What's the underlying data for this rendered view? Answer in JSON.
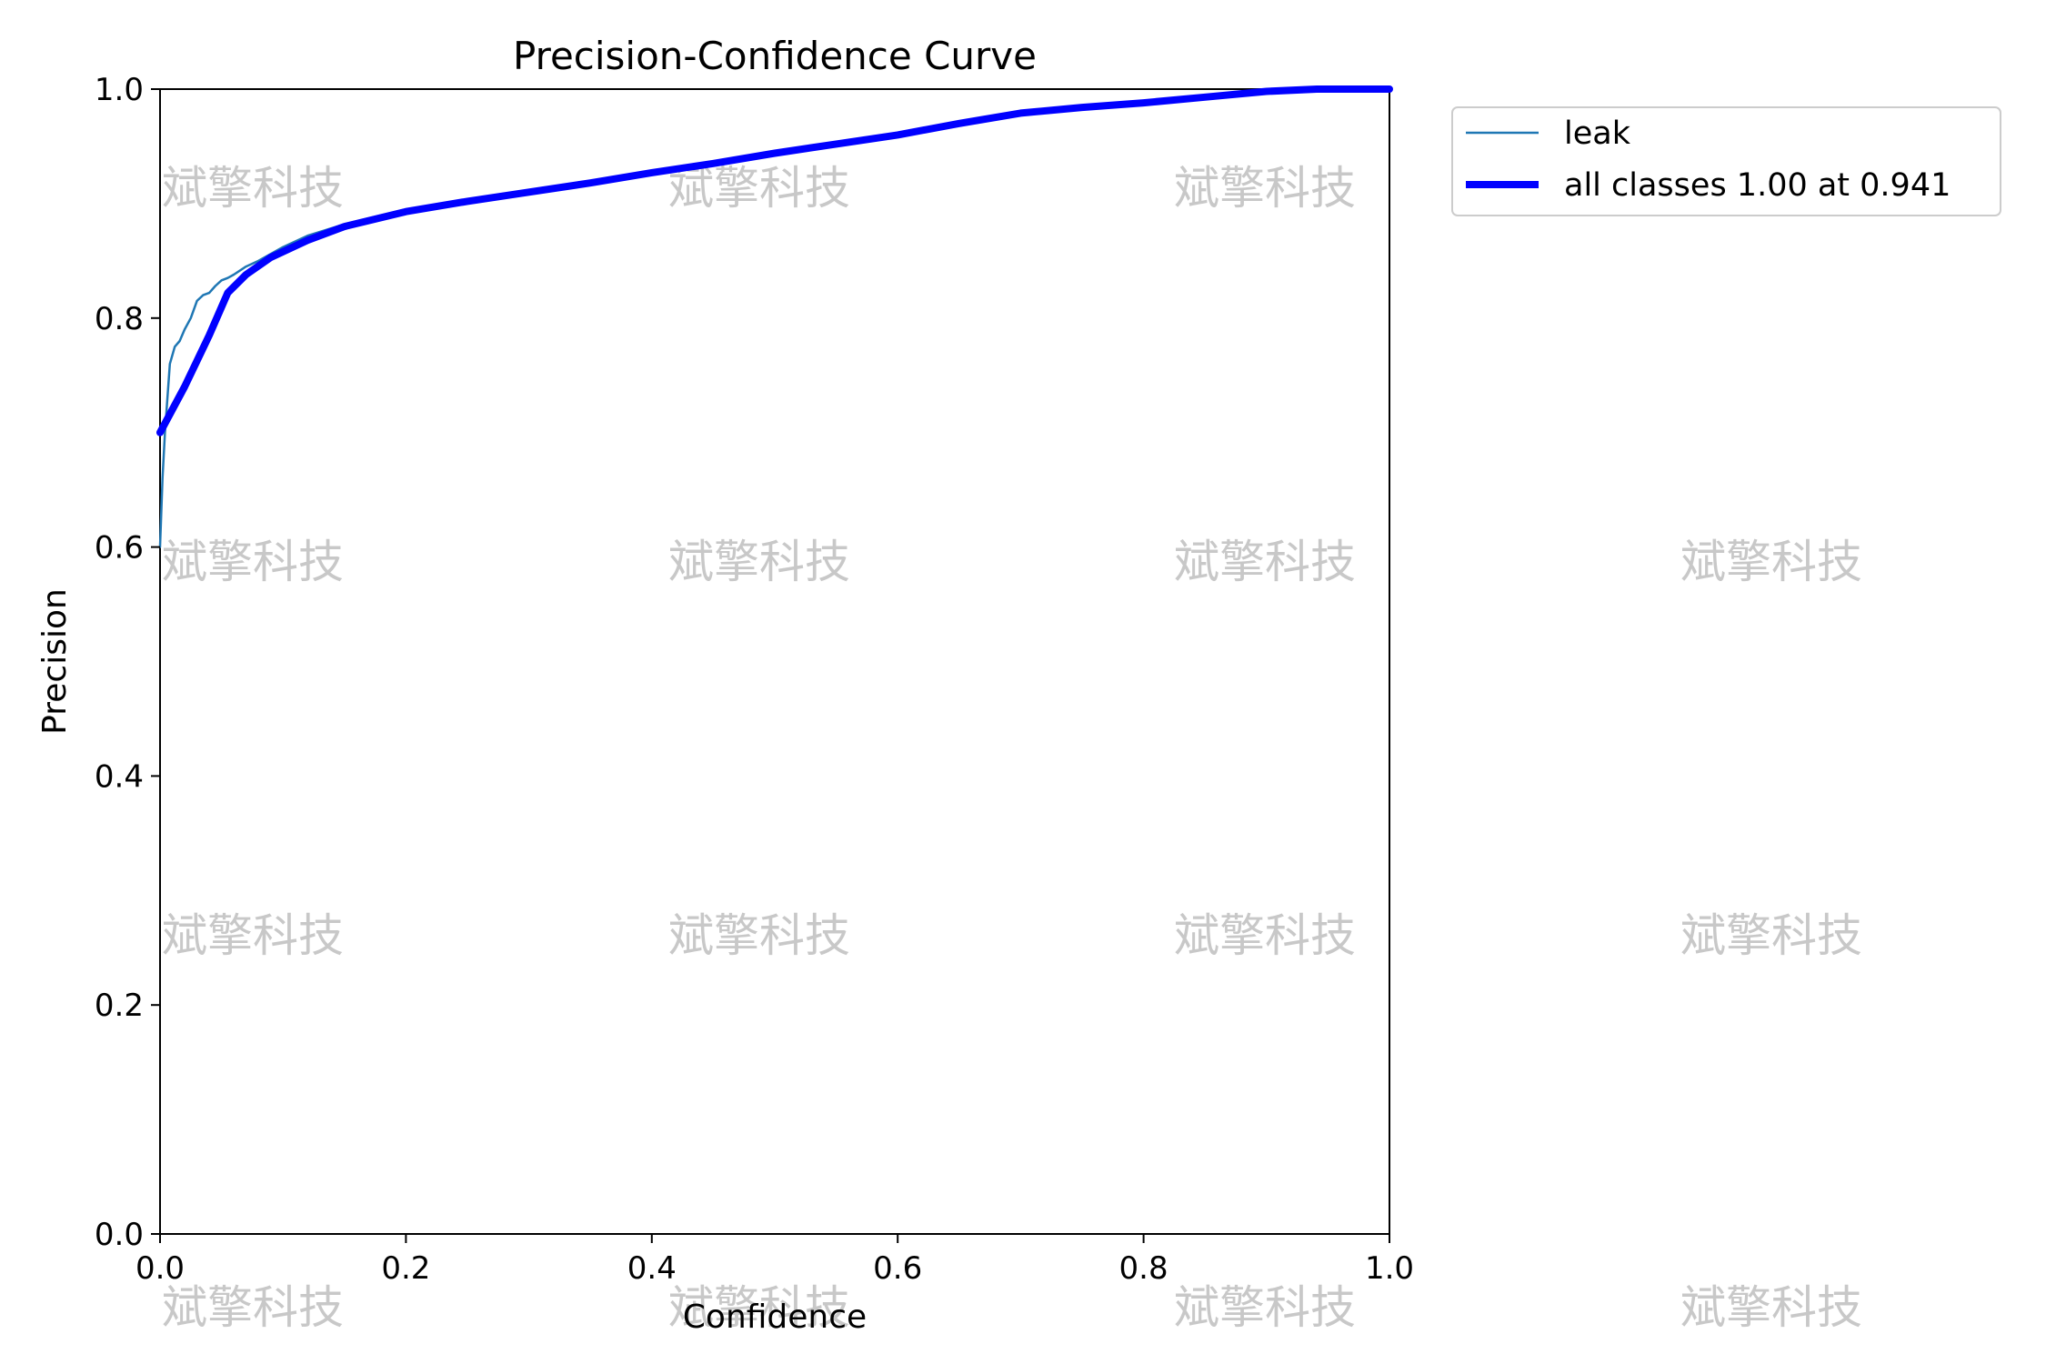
{
  "chart_data": {
    "type": "line",
    "title": "Precision-Confidence Curve",
    "xlabel": "Confidence",
    "ylabel": "Precision",
    "xlim": [
      0.0,
      1.0
    ],
    "ylim": [
      0.0,
      1.0
    ],
    "xticks": [
      "0.0",
      "0.2",
      "0.4",
      "0.6",
      "0.8",
      "1.0"
    ],
    "yticks": [
      "0.0",
      "0.2",
      "0.4",
      "0.6",
      "0.8",
      "1.0"
    ],
    "grid": false,
    "legend_position": "outside-top-right",
    "series": [
      {
        "name": "leak",
        "color": "#1f77b4",
        "x": [
          0.0,
          0.002,
          0.004,
          0.006,
          0.008,
          0.012,
          0.016,
          0.02,
          0.025,
          0.03,
          0.035,
          0.04,
          0.045,
          0.05,
          0.055,
          0.06,
          0.07,
          0.08,
          0.1,
          0.12,
          0.15,
          0.2,
          0.25,
          0.3,
          0.35,
          0.4,
          0.45,
          0.5,
          0.55,
          0.6,
          0.65,
          0.7,
          0.75,
          0.8,
          0.85,
          0.9,
          0.95,
          1.0
        ],
        "y": [
          0.6,
          0.66,
          0.7,
          0.73,
          0.76,
          0.775,
          0.78,
          0.79,
          0.8,
          0.815,
          0.82,
          0.822,
          0.828,
          0.833,
          0.835,
          0.838,
          0.845,
          0.85,
          0.862,
          0.872,
          0.882,
          0.895,
          0.903,
          0.91,
          0.919,
          0.928,
          0.936,
          0.945,
          0.952,
          0.96,
          0.97,
          0.98,
          0.984,
          0.988,
          0.992,
          0.997,
          1.0,
          1.0
        ]
      },
      {
        "name": "all classes 1.00 at 0.941",
        "color": "#0000ff",
        "x": [
          0.0,
          0.02,
          0.04,
          0.055,
          0.07,
          0.09,
          0.12,
          0.15,
          0.2,
          0.25,
          0.3,
          0.35,
          0.4,
          0.45,
          0.5,
          0.55,
          0.6,
          0.65,
          0.7,
          0.75,
          0.8,
          0.85,
          0.9,
          0.941,
          1.0
        ],
        "y": [
          0.7,
          0.74,
          0.785,
          0.822,
          0.838,
          0.853,
          0.868,
          0.88,
          0.893,
          0.902,
          0.91,
          0.918,
          0.927,
          0.935,
          0.944,
          0.952,
          0.96,
          0.97,
          0.979,
          0.984,
          0.988,
          0.993,
          0.998,
          1.0,
          1.0
        ]
      }
    ]
  },
  "watermark": {
    "text": "斌擎科技"
  }
}
